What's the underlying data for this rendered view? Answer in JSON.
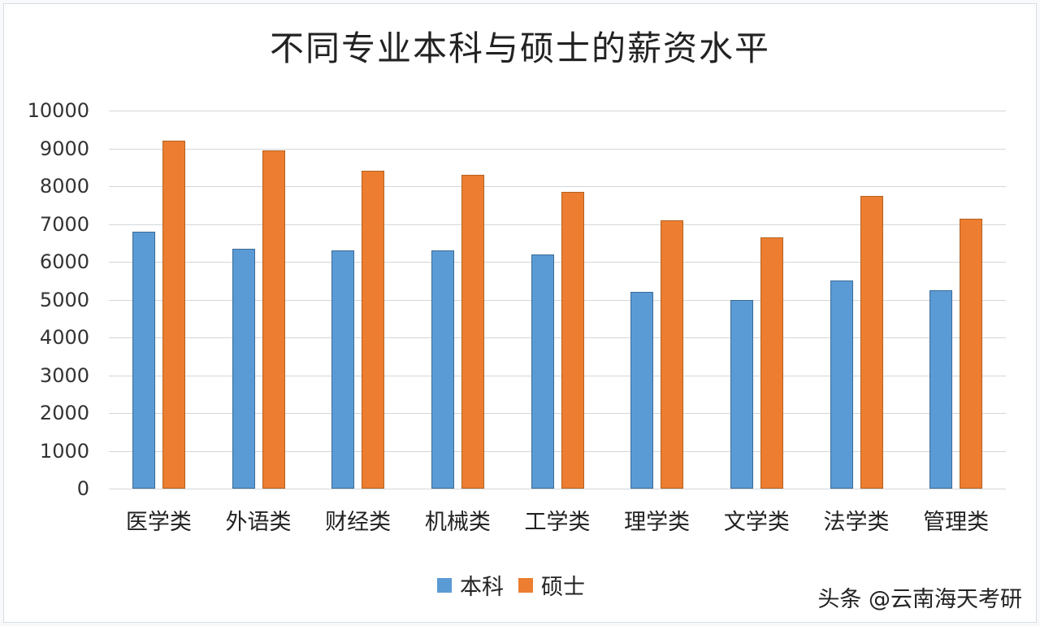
{
  "chart_data": {
    "type": "bar",
    "title": "不同专业本科与硕士的薪资水平",
    "xlabel": "",
    "ylabel": "",
    "ylim": [
      0,
      10000
    ],
    "yticks": [
      0,
      1000,
      2000,
      3000,
      4000,
      5000,
      6000,
      7000,
      8000,
      9000,
      10000
    ],
    "grid": true,
    "legend_position": "bottom",
    "categories": [
      "医学类",
      "外语类",
      "财经类",
      "机械类",
      "工学类",
      "理学类",
      "文学类",
      "法学类",
      "管理类"
    ],
    "series": [
      {
        "name": "本科",
        "color": "#5b9bd5",
        "values": [
          6800,
          6350,
          6300,
          6300,
          6200,
          5200,
          5000,
          5500,
          5250
        ]
      },
      {
        "name": "硕士",
        "color": "#ed7d31",
        "values": [
          9200,
          8950,
          8400,
          8300,
          7850,
          7100,
          6650,
          7750,
          7150
        ]
      }
    ]
  },
  "watermark": "头条 @云南海天考研"
}
